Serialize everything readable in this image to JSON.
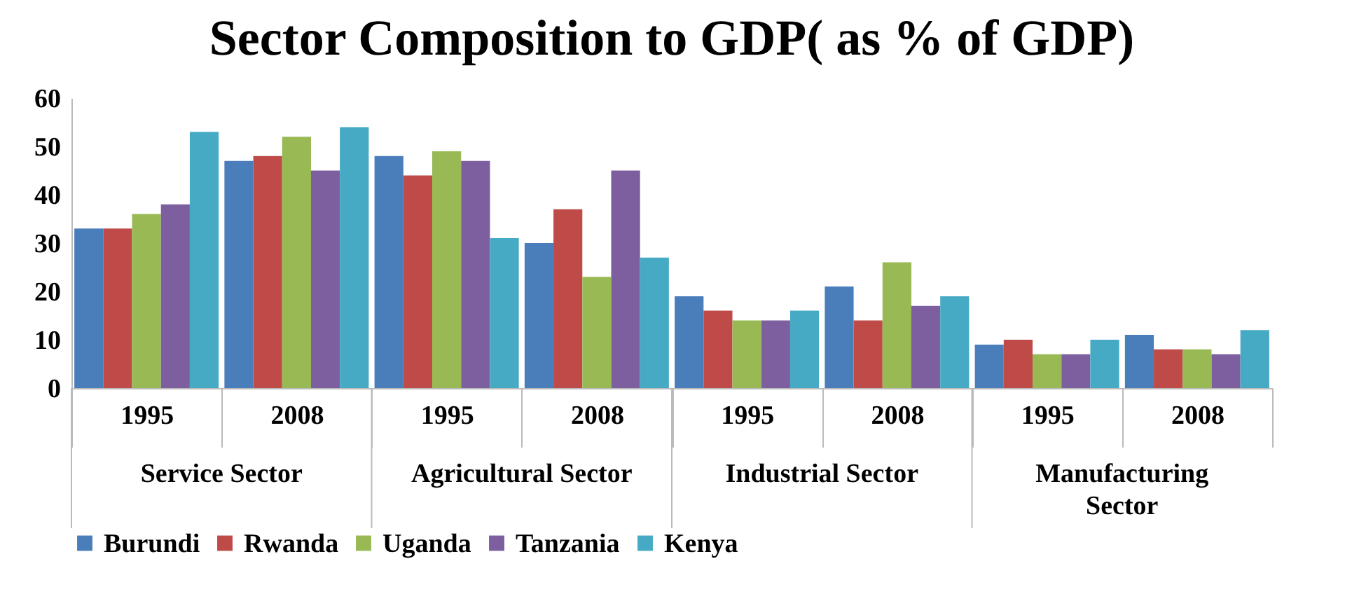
{
  "chart_data": {
    "type": "bar",
    "title": "Sector Composition to GDP( as % of GDP)",
    "categories": [
      "1995",
      "2008",
      "1995",
      "2008",
      "1995",
      "2008",
      "1995",
      "2008"
    ],
    "annotations": [
      "Service Sector",
      "Agricultural Sector",
      "Industrial Sector",
      "Manufacturing Sector"
    ],
    "series": [
      {
        "name": "Burundi",
        "color": "#4a7ebb",
        "values": [
          33,
          47,
          48,
          30,
          19,
          21,
          9,
          11
        ]
      },
      {
        "name": "Rwanda",
        "color": "#be4b48",
        "values": [
          33,
          48,
          44,
          37,
          16,
          14,
          10,
          8
        ]
      },
      {
        "name": "Uganda",
        "color": "#98b954",
        "values": [
          36,
          52,
          49,
          23,
          14,
          26,
          7,
          8
        ]
      },
      {
        "name": "Tanzania",
        "color": "#7d5fa0",
        "values": [
          38,
          45,
          47,
          45,
          14,
          17,
          7,
          7
        ]
      },
      {
        "name": "Kenya",
        "color": "#46aac5",
        "values": [
          53,
          54,
          31,
          27,
          16,
          19,
          10,
          12
        ]
      }
    ],
    "ylim": [
      0,
      60
    ],
    "yticks": [
      0,
      10,
      20,
      30,
      40,
      50,
      60
    ],
    "grid": false,
    "legend": "bottom"
  }
}
